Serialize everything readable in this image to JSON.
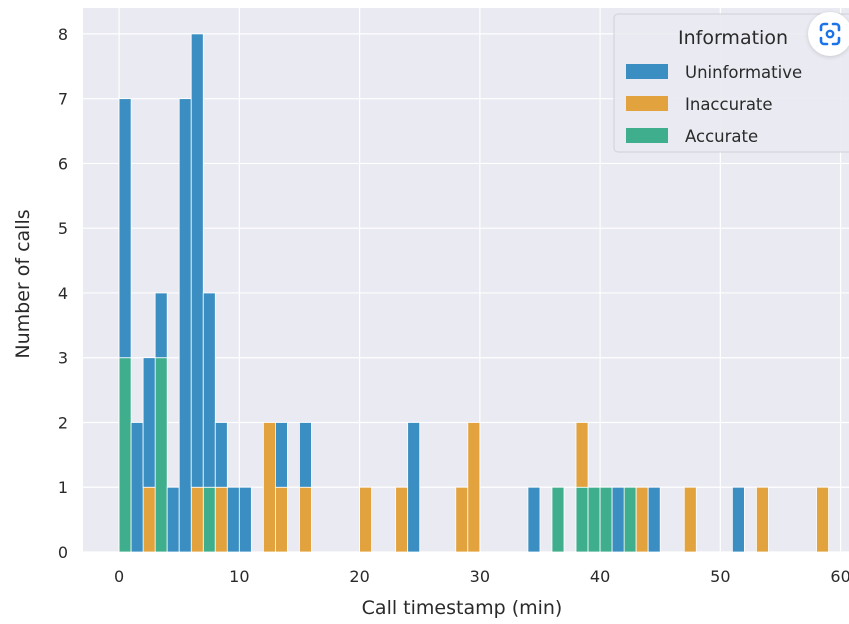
{
  "chart_data": {
    "type": "bar",
    "stacked": true,
    "xlabel": "Call timestamp (min)",
    "ylabel": "Number of calls",
    "xlim": [
      -3,
      60.7
    ],
    "ylim": [
      0,
      8.4
    ],
    "xticks": [
      0,
      10,
      20,
      30,
      40,
      50,
      60
    ],
    "yticks": [
      0,
      1,
      2,
      3,
      4,
      5,
      6,
      7,
      8
    ],
    "bin_width": 1,
    "grid": true,
    "legend": {
      "title": "Information",
      "placement": "top-right",
      "entries": [
        "Uninformative",
        "Inaccurate",
        "Accurate"
      ]
    },
    "colors": {
      "Uninformative": "#3a8ec1",
      "Inaccurate": "#e2a23e",
      "Accurate": "#3fae8c",
      "background": "#eaeaf2",
      "grid": "#ffffff"
    },
    "series": [
      {
        "name": "Accurate",
        "bins": [
          [
            0,
            3
          ],
          [
            3,
            3
          ],
          [
            7,
            1
          ],
          [
            36,
            1
          ],
          [
            38,
            1
          ],
          [
            39,
            1
          ],
          [
            40,
            1
          ],
          [
            42,
            1
          ]
        ]
      },
      {
        "name": "Inaccurate",
        "bins": [
          [
            2,
            1
          ],
          [
            6,
            1
          ],
          [
            8,
            1
          ],
          [
            12,
            2
          ],
          [
            13,
            1
          ],
          [
            15,
            1
          ],
          [
            20,
            1
          ],
          [
            23,
            1
          ],
          [
            28,
            1
          ],
          [
            29,
            2
          ],
          [
            38,
            1
          ],
          [
            43,
            1
          ],
          [
            47,
            1
          ],
          [
            53,
            1
          ],
          [
            58,
            1
          ]
        ]
      },
      {
        "name": "Uninformative",
        "bins": [
          [
            0,
            4
          ],
          [
            1,
            2
          ],
          [
            2,
            2
          ],
          [
            3,
            1
          ],
          [
            4,
            1
          ],
          [
            5,
            7
          ],
          [
            6,
            7
          ],
          [
            7,
            3
          ],
          [
            8,
            1
          ],
          [
            9,
            1
          ],
          [
            10,
            1
          ],
          [
            13,
            1
          ],
          [
            15,
            1
          ],
          [
            24,
            2
          ],
          [
            34,
            1
          ],
          [
            41,
            1
          ],
          [
            44,
            1
          ],
          [
            51,
            1
          ]
        ]
      }
    ]
  },
  "ui": {
    "lens_icon": "lens-scan-icon"
  }
}
